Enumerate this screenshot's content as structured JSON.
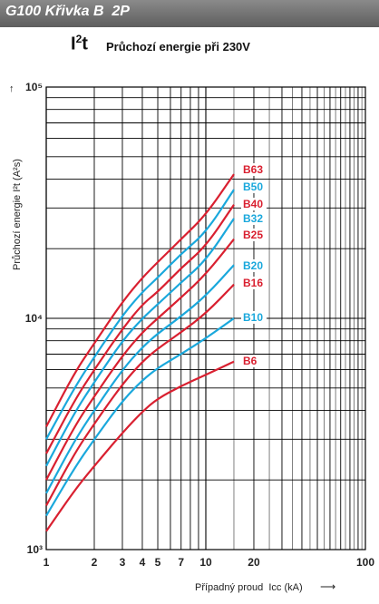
{
  "header": {
    "title": "G100 Křivka B  2P"
  },
  "heading": {
    "symbol": "I",
    "symbol_sup": "2",
    "symbol_tail": "t",
    "subtitle": "Průchozí energie při 230V"
  },
  "chart_data": {
    "type": "line",
    "title": "Průchozí energie při 230V",
    "xlabel": "Případný proud  Icc (kA)",
    "ylabel": "Průchozí energie  I²t (A²s)",
    "x_scale": "log",
    "y_scale": "log",
    "xlim": [
      1,
      100
    ],
    "ylim": [
      1000,
      100000
    ],
    "x_ticks": [
      "1",
      "2",
      "3",
      "4",
      "5",
      "7",
      "10",
      "20",
      "100"
    ],
    "y_ticks": [
      "10³",
      "10⁴",
      "10⁵"
    ],
    "grid": true,
    "colors": {
      "red": "#d92030",
      "blue": "#1aa8dc"
    },
    "series": [
      {
        "name": "B63",
        "color": "#d92030",
        "x": [
          1,
          1.5,
          2,
          3,
          4,
          5,
          7,
          10,
          15
        ],
        "y": [
          3400,
          5800,
          7800,
          11800,
          15000,
          17500,
          22000,
          28000,
          42000
        ]
      },
      {
        "name": "B50",
        "color": "#1aa8dc",
        "x": [
          1,
          1.5,
          2,
          3,
          4,
          5,
          7,
          10,
          15
        ],
        "y": [
          3000,
          5000,
          6800,
          10300,
          13000,
          15000,
          19000,
          23500,
          36000
        ]
      },
      {
        "name": "B40",
        "color": "#d92030",
        "x": [
          1,
          1.5,
          2,
          3,
          4,
          5,
          7,
          10,
          15
        ],
        "y": [
          2600,
          4400,
          6000,
          9000,
          11500,
          13000,
          16500,
          20500,
          31000
        ]
      },
      {
        "name": "B32",
        "color": "#1aa8dc",
        "x": [
          1,
          1.5,
          2,
          3,
          4,
          5,
          7,
          10,
          15
        ],
        "y": [
          2300,
          3900,
          5300,
          8000,
          10000,
          11500,
          14300,
          17800,
          27000
        ]
      },
      {
        "name": "B25",
        "color": "#d92030",
        "x": [
          1,
          1.5,
          2,
          3,
          4,
          5,
          7,
          10,
          15
        ],
        "y": [
          2000,
          3400,
          4600,
          6900,
          8700,
          10000,
          12300,
          15500,
          22000
        ]
      },
      {
        "name": "B20",
        "color": "#1aa8dc",
        "x": [
          1,
          1.5,
          2,
          3,
          4,
          5,
          7,
          10,
          15
        ],
        "y": [
          1750,
          2950,
          4000,
          6000,
          7500,
          8600,
          10200,
          12500,
          17000
        ]
      },
      {
        "name": "B16",
        "color": "#d92030",
        "x": [
          1,
          1.5,
          2,
          3,
          4,
          5,
          7,
          10,
          15
        ],
        "y": [
          1550,
          2600,
          3500,
          5200,
          6500,
          7400,
          8700,
          10500,
          14000
        ]
      },
      {
        "name": "B10",
        "color": "#1aa8dc",
        "x": [
          1,
          1.5,
          2,
          3,
          4,
          5,
          7,
          10,
          15
        ],
        "y": [
          1400,
          2250,
          3000,
          4400,
          5400,
          6100,
          7000,
          8200,
          10000
        ]
      },
      {
        "name": "B6",
        "color": "#d92030",
        "x": [
          1,
          1.5,
          2,
          3,
          4,
          5,
          7,
          10,
          15
        ],
        "y": [
          1200,
          1800,
          2300,
          3200,
          3950,
          4500,
          5100,
          5700,
          6500
        ]
      }
    ]
  }
}
